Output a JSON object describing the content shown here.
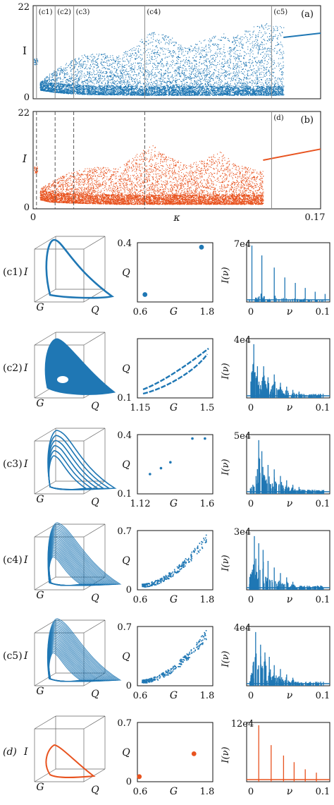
{
  "colors": {
    "blue": "#1f77b4",
    "orange": "#e8531f",
    "grey": "#888888",
    "axis": "#111111"
  },
  "chart_data": [
    {
      "id": "a",
      "type": "scatter",
      "panel_label": "(a)",
      "xlabel": "",
      "ylabel": "I",
      "xlim": [
        0,
        0.17
      ],
      "ylim": [
        0,
        22
      ],
      "yticks": [
        "0",
        "22"
      ],
      "color": "blue",
      "regions": [
        {
          "label": "(c1)",
          "x": 0.002
        },
        {
          "label": "(c2)",
          "x": 0.013
        },
        {
          "label": "(c3)",
          "x": 0.024
        },
        {
          "label": "(c4)",
          "x": 0.066
        },
        {
          "label": "(c5)",
          "x": 0.141
        }
      ],
      "envelope": {
        "x": [
          0.004,
          0.01,
          0.02,
          0.03,
          0.04,
          0.05,
          0.06,
          0.07,
          0.08,
          0.09,
          0.1,
          0.11,
          0.12,
          0.13,
          0.14,
          0.148
        ],
        "low": [
          2.0,
          1.6,
          1.2,
          1.0,
          0.9,
          0.9,
          0.8,
          0.8,
          0.8,
          0.8,
          0.8,
          0.8,
          0.8,
          0.8,
          0.8,
          0.8
        ],
        "high": [
          4.0,
          6.0,
          8.5,
          10.5,
          10.8,
          10.0,
          13.0,
          16.0,
          15.0,
          12.0,
          14.0,
          15.5,
          15.0,
          17.0,
          18.0,
          17.0
        ]
      },
      "branch": {
        "x": [
          0.148,
          0.17
        ],
        "y": [
          14.5,
          15.5
        ]
      }
    },
    {
      "id": "b",
      "type": "scatter",
      "panel_label": "(b)",
      "xlabel": "κ",
      "ylabel": "I",
      "xlim": [
        0,
        0.17
      ],
      "ylim": [
        0,
        22
      ],
      "yticks": [
        "0",
        "22"
      ],
      "xticks": [
        "0",
        "0.17"
      ],
      "color": "orange",
      "regions": [
        {
          "label": "",
          "x": 0.002
        },
        {
          "label": "",
          "x": 0.013
        },
        {
          "label": "",
          "x": 0.024
        },
        {
          "label": "",
          "x": 0.066
        },
        {
          "label": "(d)",
          "x": 0.141
        }
      ],
      "envelope": {
        "x": [
          0.004,
          0.01,
          0.02,
          0.03,
          0.04,
          0.05,
          0.06,
          0.07,
          0.08,
          0.09,
          0.1,
          0.11,
          0.12,
          0.13,
          0.136
        ],
        "low": [
          2.0,
          1.5,
          1.3,
          1.2,
          1.1,
          1.0,
          1.0,
          1.0,
          1.0,
          1.0,
          1.0,
          1.0,
          1.0,
          1.0,
          1.0
        ],
        "high": [
          4.5,
          6.0,
          8.0,
          9.0,
          9.5,
          9.0,
          12.0,
          14.5,
          12.0,
          10.0,
          11.0,
          13.0,
          10.0,
          9.0,
          8.5
        ]
      },
      "branch": {
        "x": [
          0.136,
          0.17
        ],
        "y": [
          11.0,
          13.5
        ]
      }
    }
  ],
  "rows": [
    {
      "label": "(c1)",
      "italic": false,
      "color": "blue",
      "attractor": {
        "kind": "cycle1"
      },
      "qg": {
        "xticks": [
          "0.6",
          "1.8"
        ],
        "xlim": [
          0.6,
          1.8
        ],
        "yticks": [
          "",
          "0.4"
        ],
        "ylim": [
          0,
          0.4
        ],
        "points": [
          [
            0.72,
            0.05
          ],
          [
            1.62,
            0.37
          ]
        ],
        "kind": "dots-big"
      },
      "spectrum": {
        "ytop": "7e4",
        "xticks": [
          "0",
          "0.1"
        ],
        "peaks": [
          [
            0.004,
            1.0
          ],
          [
            0.02,
            0.82
          ],
          [
            0.04,
            0.6
          ],
          [
            0.057,
            0.42
          ],
          [
            0.074,
            0.32
          ],
          [
            0.09,
            0.23
          ],
          [
            0.106,
            0.16
          ],
          [
            0.122,
            0.12
          ]
        ],
        "kind": "sparse"
      }
    },
    {
      "label": "(c2)",
      "italic": false,
      "color": "blue",
      "attractor": {
        "kind": "torus"
      },
      "qg": {
        "xticks": [
          "1.15",
          "1.5"
        ],
        "xlim": [
          1.15,
          1.5
        ],
        "yticks": [
          "0.1",
          ""
        ],
        "ylim": [
          0.1,
          0.4
        ],
        "kind": "loop"
      },
      "spectrum": {
        "ytop": "4e4",
        "xticks": [
          "0",
          "0.1"
        ],
        "peaks": [
          [
            0.007,
            0.95
          ],
          [
            0.013,
            0.55
          ],
          [
            0.023,
            0.55
          ],
          [
            0.03,
            0.35
          ],
          [
            0.04,
            0.4
          ],
          [
            0.05,
            0.25
          ],
          [
            0.06,
            0.18
          ],
          [
            0.07,
            0.12
          ],
          [
            0.08,
            0.09
          ]
        ],
        "kind": "dense"
      }
    },
    {
      "label": "(c3)",
      "italic": false,
      "color": "blue",
      "attractor": {
        "kind": "multi"
      },
      "qg": {
        "xticks": [
          "1.12",
          "1.6"
        ],
        "xlim": [
          1.12,
          1.6
        ],
        "yticks": [
          "0.1",
          "0.4"
        ],
        "ylim": [
          0.1,
          0.4
        ],
        "points": [
          [
            1.2,
            0.2
          ],
          [
            1.27,
            0.23
          ],
          [
            1.33,
            0.26
          ],
          [
            1.47,
            0.38
          ],
          [
            1.55,
            0.38
          ]
        ],
        "kind": "dots-small"
      },
      "spectrum": {
        "ytop": "5e4",
        "xticks": [
          "0",
          "0.1"
        ],
        "peaks": [
          [
            0.015,
            0.95
          ],
          [
            0.02,
            0.75
          ],
          [
            0.03,
            0.5
          ],
          [
            0.04,
            0.42
          ],
          [
            0.05,
            0.3
          ],
          [
            0.06,
            0.22
          ],
          [
            0.07,
            0.14
          ],
          [
            0.08,
            0.1
          ]
        ],
        "kind": "dense"
      }
    },
    {
      "label": "(c4)",
      "italic": false,
      "color": "blue",
      "attractor": {
        "kind": "chaos"
      },
      "qg": {
        "xticks": [
          "0.6",
          "1.8"
        ],
        "xlim": [
          0.6,
          1.8
        ],
        "yticks": [
          "0",
          "0.7"
        ],
        "ylim": [
          0,
          0.7
        ],
        "kind": "cloud"
      },
      "spectrum": {
        "ytop": "3e4",
        "xticks": [
          "0",
          "0.1"
        ],
        "peaks": [
          [
            0.008,
            0.95
          ],
          [
            0.015,
            0.82
          ],
          [
            0.022,
            0.7
          ],
          [
            0.03,
            0.5
          ],
          [
            0.04,
            0.38
          ],
          [
            0.05,
            0.28
          ],
          [
            0.06,
            0.2
          ],
          [
            0.07,
            0.12
          ]
        ],
        "kind": "dense"
      }
    },
    {
      "label": "(c5)",
      "italic": false,
      "color": "blue",
      "attractor": {
        "kind": "chaos"
      },
      "qg": {
        "xticks": [
          "0.6",
          "1.8"
        ],
        "xlim": [
          0.6,
          1.8
        ],
        "yticks": [
          "0",
          "0.7"
        ],
        "ylim": [
          0,
          0.7
        ],
        "kind": "cloud"
      },
      "spectrum": {
        "ytop": "4e4",
        "xticks": [
          "0",
          "0.1"
        ],
        "peaks": [
          [
            0.01,
            0.95
          ],
          [
            0.018,
            0.72
          ],
          [
            0.025,
            0.58
          ],
          [
            0.032,
            0.5
          ],
          [
            0.04,
            0.35
          ],
          [
            0.05,
            0.28
          ],
          [
            0.06,
            0.18
          ],
          [
            0.07,
            0.12
          ]
        ],
        "kind": "dense"
      }
    },
    {
      "label": "(d)",
      "italic": true,
      "color": "orange",
      "attractor": {
        "kind": "cycle2"
      },
      "qg": {
        "xticks": [
          "0.6",
          "1.8"
        ],
        "xlim": [
          0.6,
          1.8
        ],
        "yticks": [
          "0",
          "0.7"
        ],
        "ylim": [
          0,
          0.7
        ],
        "points": [
          [
            0.63,
            0.06
          ],
          [
            1.5,
            0.33
          ]
        ],
        "kind": "dots-big"
      },
      "spectrum": {
        "ytop": "12e4",
        "xticks": [
          "0",
          "0.1"
        ],
        "peaks": [
          [
            0.015,
            1.0
          ],
          [
            0.035,
            0.64
          ],
          [
            0.055,
            0.45
          ],
          [
            0.072,
            0.33
          ],
          [
            0.09,
            0.2
          ],
          [
            0.108,
            0.14
          ]
        ],
        "kind": "clean"
      }
    }
  ],
  "common": {
    "I": "I",
    "G": "G",
    "Q": "Q",
    "Iv": "I(ν)",
    "nu": "ν"
  }
}
